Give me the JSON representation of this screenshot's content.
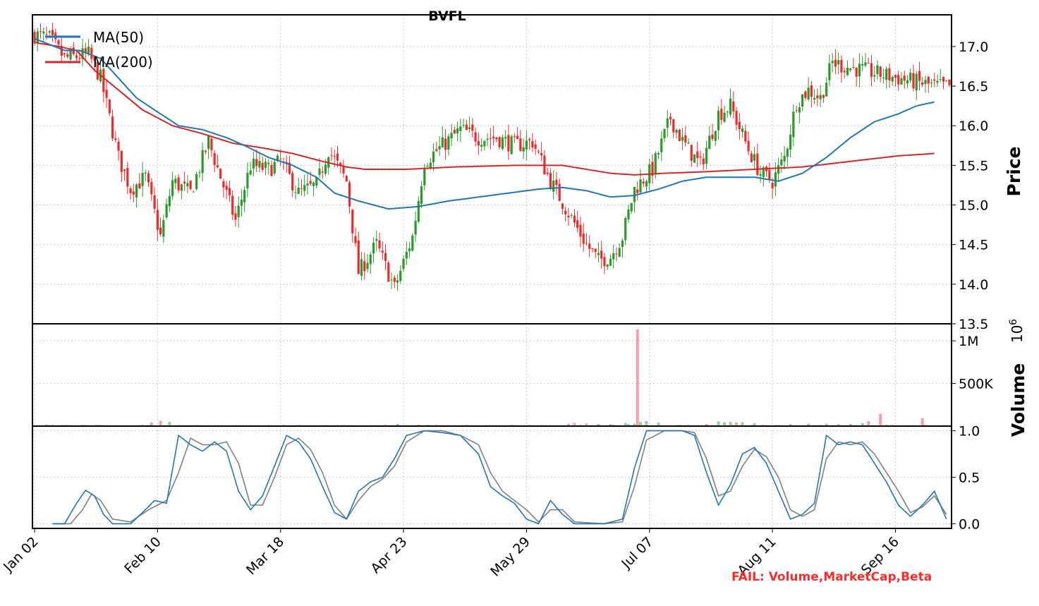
{
  "chart_data": {
    "type": "candlestick",
    "title": "BVFL",
    "fail_text": "FAIL: Volume,MarketCap,Beta",
    "legend": {
      "placement": "top-left",
      "entries": [
        "MA(50)",
        "MA(200)"
      ]
    },
    "colors": {
      "up": "#2a9a2a",
      "down": "#ee2a2a",
      "ma50": "#1f77b4",
      "ma200": "#d62728",
      "k_line": "#1f77b4",
      "d_line": "#808080",
      "fail": "#ff2a2a"
    },
    "grid": true,
    "x_tick_labels": [
      "Jan 02",
      "Feb 10",
      "Mar 18",
      "Apr 23",
      "May 29",
      "Jul 07",
      "Aug 11",
      "Sep 16"
    ],
    "price_panel": {
      "ylabel": "Price",
      "ylim": [
        13.5,
        17.4
      ],
      "tick_labels": [
        "13.5",
        "14.0",
        "14.5",
        "15.0",
        "15.5",
        "16.0",
        "16.5",
        "17.0"
      ],
      "close_anchors": [
        [
          0,
          17.15
        ],
        [
          5,
          17.1
        ],
        [
          10,
          16.85
        ],
        [
          18,
          16.9
        ],
        [
          22,
          16.6
        ],
        [
          28,
          15.6
        ],
        [
          32,
          15.2
        ],
        [
          37,
          15.35
        ],
        [
          42,
          14.6
        ],
        [
          46,
          15.3
        ],
        [
          52,
          15.15
        ],
        [
          58,
          15.8
        ],
        [
          62,
          15.35
        ],
        [
          67,
          14.8
        ],
        [
          72,
          15.5
        ],
        [
          78,
          15.45
        ],
        [
          82,
          15.55
        ],
        [
          88,
          15.15
        ],
        [
          94,
          15.25
        ],
        [
          98,
          15.7
        ],
        [
          104,
          15.3
        ],
        [
          108,
          14.15
        ],
        [
          114,
          14.5
        ],
        [
          120,
          13.95
        ],
        [
          126,
          14.6
        ],
        [
          130,
          15.55
        ],
        [
          136,
          15.75
        ],
        [
          142,
          15.95
        ],
        [
          148,
          15.85
        ],
        [
          154,
          15.85
        ],
        [
          160,
          15.75
        ],
        [
          166,
          15.8
        ],
        [
          172,
          15.3
        ],
        [
          178,
          14.9
        ],
        [
          184,
          14.5
        ],
        [
          188,
          14.3
        ],
        [
          192,
          14.35
        ],
        [
          196,
          14.6
        ],
        [
          200,
          15.2
        ],
        [
          206,
          15.45
        ],
        [
          212,
          16.1
        ],
        [
          216,
          15.8
        ],
        [
          222,
          15.5
        ],
        [
          228,
          16.15
        ],
        [
          232,
          16.25
        ],
        [
          238,
          15.7
        ],
        [
          242,
          15.4
        ],
        [
          246,
          15.3
        ],
        [
          250,
          15.6
        ],
        [
          254,
          16.3
        ],
        [
          258,
          16.45
        ],
        [
          262,
          16.35
        ],
        [
          266,
          16.8
        ],
        [
          270,
          16.75
        ],
        [
          276,
          16.7
        ],
        [
          282,
          16.65
        ],
        [
          288,
          16.6
        ],
        [
          294,
          16.55
        ],
        [
          300,
          16.5
        ]
      ],
      "ma50_anchors": [
        [
          0,
          17.1
        ],
        [
          10,
          16.95
        ],
        [
          15,
          16.95
        ],
        [
          22,
          16.85
        ],
        [
          28,
          16.6
        ],
        [
          34,
          16.35
        ],
        [
          40,
          16.2
        ],
        [
          48,
          16.0
        ],
        [
          56,
          15.95
        ],
        [
          64,
          15.85
        ],
        [
          70,
          15.75
        ],
        [
          78,
          15.6
        ],
        [
          86,
          15.5
        ],
        [
          94,
          15.35
        ],
        [
          100,
          15.15
        ],
        [
          108,
          15.05
        ],
        [
          118,
          14.95
        ],
        [
          128,
          14.98
        ],
        [
          138,
          15.05
        ],
        [
          148,
          15.1
        ],
        [
          158,
          15.15
        ],
        [
          168,
          15.2
        ],
        [
          176,
          15.22
        ],
        [
          184,
          15.18
        ],
        [
          192,
          15.1
        ],
        [
          200,
          15.12
        ],
        [
          208,
          15.2
        ],
        [
          216,
          15.3
        ],
        [
          224,
          15.35
        ],
        [
          232,
          15.35
        ],
        [
          240,
          15.35
        ],
        [
          248,
          15.3
        ],
        [
          256,
          15.4
        ],
        [
          264,
          15.6
        ],
        [
          272,
          15.85
        ],
        [
          280,
          16.05
        ],
        [
          288,
          16.15
        ],
        [
          294,
          16.25
        ],
        [
          300,
          16.3
        ]
      ],
      "ma200_anchors": [
        [
          0,
          17.05
        ],
        [
          8,
          17.0
        ],
        [
          14,
          16.95
        ],
        [
          20,
          16.7
        ],
        [
          28,
          16.45
        ],
        [
          36,
          16.2
        ],
        [
          46,
          16.0
        ],
        [
          56,
          15.9
        ],
        [
          66,
          15.78
        ],
        [
          76,
          15.72
        ],
        [
          86,
          15.65
        ],
        [
          96,
          15.55
        ],
        [
          104,
          15.48
        ],
        [
          110,
          15.45
        ],
        [
          124,
          15.45
        ],
        [
          140,
          15.48
        ],
        [
          160,
          15.5
        ],
        [
          176,
          15.5
        ],
        [
          184,
          15.45
        ],
        [
          192,
          15.4
        ],
        [
          200,
          15.38
        ],
        [
          210,
          15.4
        ],
        [
          224,
          15.42
        ],
        [
          240,
          15.45
        ],
        [
          256,
          15.48
        ],
        [
          272,
          15.55
        ],
        [
          288,
          15.62
        ],
        [
          300,
          15.65
        ]
      ]
    },
    "volume_panel": {
      "ylabel": "Volume",
      "scale_label": "10",
      "scale_exp": "6",
      "ylim": [
        0,
        1200000
      ],
      "tick_labels": [
        "500K",
        "1M"
      ],
      "spikes": [
        [
          4,
          15000
        ],
        [
          6,
          12000
        ],
        [
          9,
          10000
        ],
        [
          39,
          40000
        ],
        [
          42,
          60000
        ],
        [
          45,
          45000
        ],
        [
          61,
          8000
        ],
        [
          73,
          6000
        ],
        [
          117,
          12000
        ],
        [
          119,
          10000
        ],
        [
          121,
          22000
        ],
        [
          128,
          15000
        ],
        [
          144,
          12000
        ],
        [
          160,
          8000
        ],
        [
          178,
          25000
        ],
        [
          180,
          35000
        ],
        [
          184,
          28000
        ],
        [
          188,
          22000
        ],
        [
          192,
          20000
        ],
        [
          197,
          32000
        ],
        [
          198,
          20000
        ],
        [
          200,
          25000
        ],
        [
          201,
          1130000
        ],
        [
          202,
          45000
        ],
        [
          204,
          55000
        ],
        [
          208,
          35000
        ],
        [
          215,
          12000
        ],
        [
          224,
          22000
        ],
        [
          228,
          50000
        ],
        [
          230,
          40000
        ],
        [
          232,
          45000
        ],
        [
          234,
          38000
        ],
        [
          236,
          40000
        ],
        [
          240,
          30000
        ],
        [
          252,
          20000
        ],
        [
          258,
          25000
        ],
        [
          264,
          25000
        ],
        [
          268,
          20000
        ],
        [
          272,
          22000
        ],
        [
          276,
          30000
        ],
        [
          278,
          55000
        ],
        [
          282,
          140000
        ],
        [
          296,
          90000
        ]
      ]
    },
    "oscillator_panel": {
      "ylim": [
        -0.05,
        1.05
      ],
      "tick_labels": [
        "0.0",
        "0.5",
        "1.0"
      ],
      "k_anchors": [
        [
          6,
          0.0
        ],
        [
          10,
          0.0
        ],
        [
          14,
          0.22
        ],
        [
          17,
          0.36
        ],
        [
          20,
          0.3
        ],
        [
          23,
          0.1
        ],
        [
          26,
          0.0
        ],
        [
          32,
          0.0
        ],
        [
          36,
          0.12
        ],
        [
          40,
          0.25
        ],
        [
          44,
          0.22
        ],
        [
          48,
          0.95
        ],
        [
          52,
          0.85
        ],
        [
          56,
          0.78
        ],
        [
          60,
          0.88
        ],
        [
          64,
          0.78
        ],
        [
          68,
          0.35
        ],
        [
          72,
          0.15
        ],
        [
          76,
          0.3
        ],
        [
          80,
          0.62
        ],
        [
          84,
          0.95
        ],
        [
          88,
          0.88
        ],
        [
          92,
          0.7
        ],
        [
          96,
          0.4
        ],
        [
          100,
          0.12
        ],
        [
          104,
          0.05
        ],
        [
          108,
          0.35
        ],
        [
          112,
          0.45
        ],
        [
          116,
          0.5
        ],
        [
          120,
          0.7
        ],
        [
          124,
          0.95
        ],
        [
          130,
          1.0
        ],
        [
          136,
          0.98
        ],
        [
          142,
          0.95
        ],
        [
          148,
          0.75
        ],
        [
          152,
          0.4
        ],
        [
          156,
          0.3
        ],
        [
          160,
          0.22
        ],
        [
          164,
          0.05
        ],
        [
          168,
          0.0
        ],
        [
          172,
          0.25
        ],
        [
          176,
          0.1
        ],
        [
          180,
          0.0
        ],
        [
          190,
          0.0
        ],
        [
          196,
          0.05
        ],
        [
          200,
          0.6
        ],
        [
          204,
          1.0
        ],
        [
          210,
          1.0
        ],
        [
          216,
          1.0
        ],
        [
          220,
          0.95
        ],
        [
          224,
          0.55
        ],
        [
          228,
          0.2
        ],
        [
          232,
          0.42
        ],
        [
          236,
          0.75
        ],
        [
          240,
          0.82
        ],
        [
          244,
          0.65
        ],
        [
          248,
          0.35
        ],
        [
          252,
          0.05
        ],
        [
          256,
          0.1
        ],
        [
          260,
          0.22
        ],
        [
          264,
          0.95
        ],
        [
          268,
          0.85
        ],
        [
          272,
          0.88
        ],
        [
          276,
          0.85
        ],
        [
          280,
          0.65
        ],
        [
          284,
          0.45
        ],
        [
          288,
          0.2
        ],
        [
          292,
          0.08
        ],
        [
          296,
          0.2
        ],
        [
          300,
          0.35
        ],
        [
          304,
          0.05
        ]
      ],
      "d_anchors": [
        [
          6,
          0.0
        ],
        [
          12,
          0.0
        ],
        [
          16,
          0.15
        ],
        [
          19,
          0.32
        ],
        [
          22,
          0.25
        ],
        [
          26,
          0.05
        ],
        [
          32,
          0.02
        ],
        [
          38,
          0.15
        ],
        [
          44,
          0.25
        ],
        [
          48,
          0.55
        ],
        [
          52,
          0.92
        ],
        [
          56,
          0.85
        ],
        [
          60,
          0.85
        ],
        [
          64,
          0.88
        ],
        [
          68,
          0.65
        ],
        [
          72,
          0.2
        ],
        [
          76,
          0.2
        ],
        [
          80,
          0.5
        ],
        [
          84,
          0.85
        ],
        [
          88,
          0.92
        ],
        [
          92,
          0.8
        ],
        [
          96,
          0.55
        ],
        [
          100,
          0.2
        ],
        [
          104,
          0.05
        ],
        [
          108,
          0.25
        ],
        [
          112,
          0.4
        ],
        [
          116,
          0.48
        ],
        [
          120,
          0.62
        ],
        [
          124,
          0.88
        ],
        [
          130,
          1.0
        ],
        [
          136,
          1.0
        ],
        [
          142,
          0.95
        ],
        [
          148,
          0.85
        ],
        [
          152,
          0.55
        ],
        [
          156,
          0.35
        ],
        [
          160,
          0.25
        ],
        [
          164,
          0.15
        ],
        [
          168,
          0.02
        ],
        [
          172,
          0.15
        ],
        [
          176,
          0.15
        ],
        [
          180,
          0.02
        ],
        [
          190,
          0.0
        ],
        [
          196,
          0.02
        ],
        [
          200,
          0.4
        ],
        [
          204,
          0.9
        ],
        [
          210,
          1.0
        ],
        [
          216,
          1.0
        ],
        [
          220,
          0.98
        ],
        [
          224,
          0.7
        ],
        [
          228,
          0.3
        ],
        [
          232,
          0.35
        ],
        [
          236,
          0.62
        ],
        [
          240,
          0.8
        ],
        [
          244,
          0.72
        ],
        [
          248,
          0.5
        ],
        [
          252,
          0.15
        ],
        [
          256,
          0.08
        ],
        [
          260,
          0.15
        ],
        [
          264,
          0.7
        ],
        [
          268,
          0.88
        ],
        [
          272,
          0.85
        ],
        [
          276,
          0.88
        ],
        [
          280,
          0.75
        ],
        [
          284,
          0.55
        ],
        [
          288,
          0.35
        ],
        [
          292,
          0.12
        ],
        [
          296,
          0.18
        ],
        [
          300,
          0.3
        ],
        [
          304,
          0.1
        ]
      ]
    }
  }
}
